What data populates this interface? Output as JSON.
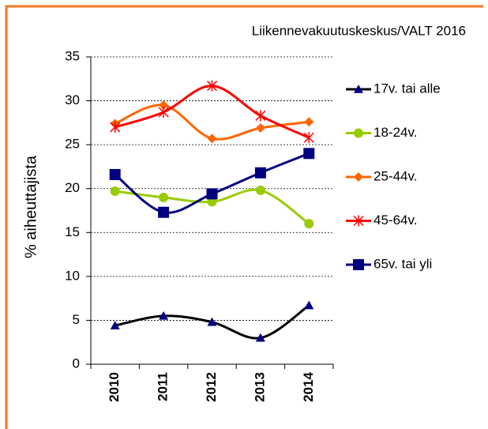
{
  "chart_data": {
    "type": "line",
    "source": "Liikennevakuutuskeskus/VALT 2016",
    "ylabel": "% aiheuttajista",
    "categories": [
      "2010",
      "2011",
      "2012",
      "2013",
      "2014"
    ],
    "ylim": [
      0,
      35
    ],
    "yticks": [
      0,
      5,
      10,
      15,
      20,
      25,
      30,
      35
    ],
    "grid": true,
    "smooth": true,
    "legend": "right",
    "series": [
      {
        "name": "17v. tai alle",
        "color": "#000080",
        "line_color": "#000000",
        "marker": "triangle",
        "values": [
          4.4,
          5.5,
          4.8,
          3.0,
          6.7
        ]
      },
      {
        "name": "18-24v.",
        "color": "#99cc00",
        "line_color": "#99cc00",
        "marker": "circle",
        "values": [
          19.7,
          19.0,
          18.5,
          19.8,
          16.0
        ]
      },
      {
        "name": "25-44v.",
        "color": "#ff6600",
        "line_color": "#ff6600",
        "marker": "diamond",
        "values": [
          27.4,
          29.5,
          25.7,
          26.9,
          27.6
        ]
      },
      {
        "name": "45-64v.",
        "color": "#ff0000",
        "line_color": "#ff0000",
        "marker": "asterisk",
        "values": [
          27.0,
          28.7,
          31.7,
          28.3,
          25.8
        ]
      },
      {
        "name": "65v. tai yli",
        "color": "#000080",
        "line_color": "#000080",
        "marker": "square",
        "values": [
          21.6,
          17.3,
          19.4,
          21.8,
          24.0
        ]
      }
    ]
  }
}
